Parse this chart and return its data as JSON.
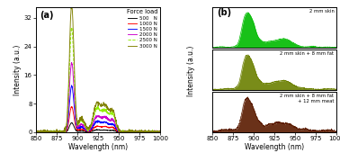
{
  "wl_min": 850,
  "wl_max": 1000,
  "panel_a_label": "(a)",
  "panel_b_label": "(b)",
  "xlabel": "Wavelength (nm)",
  "ylabel_a": "Intensity (a.u.)",
  "ylabel_b": "Intensity (a.u.)",
  "ylim_a": [
    0,
    35
  ],
  "yticks_a": [
    0,
    8,
    16,
    24,
    32
  ],
  "legend_title": "Force load",
  "legend_entries": [
    "500   N",
    "1000 N",
    "1500 N",
    "2000 N",
    "2500 N",
    "3000 N"
  ],
  "line_colors": [
    "#000000",
    "#ff0000",
    "#0000ff",
    "#cc00cc",
    "#90ee00",
    "#808000"
  ],
  "line_styles": [
    "-",
    "-",
    "-",
    "-",
    "--",
    "-"
  ],
  "force_scales": [
    0.8,
    2.2,
    4.0,
    6.0,
    9.0,
    11.0
  ],
  "tissue_labels": [
    "2 mm skin",
    "2 mm skin + 8 mm fat",
    "2 mm skin + 8 mm fat\n+ 12 mm meat"
  ],
  "tissue_colors": [
    "#00bb00",
    "#6b8000",
    "#5a1a00"
  ],
  "tissue_scales": [
    1.0,
    0.55,
    0.22
  ],
  "tissue_noise": [
    0.03,
    0.07,
    0.15
  ],
  "background_color": "#ffffff"
}
